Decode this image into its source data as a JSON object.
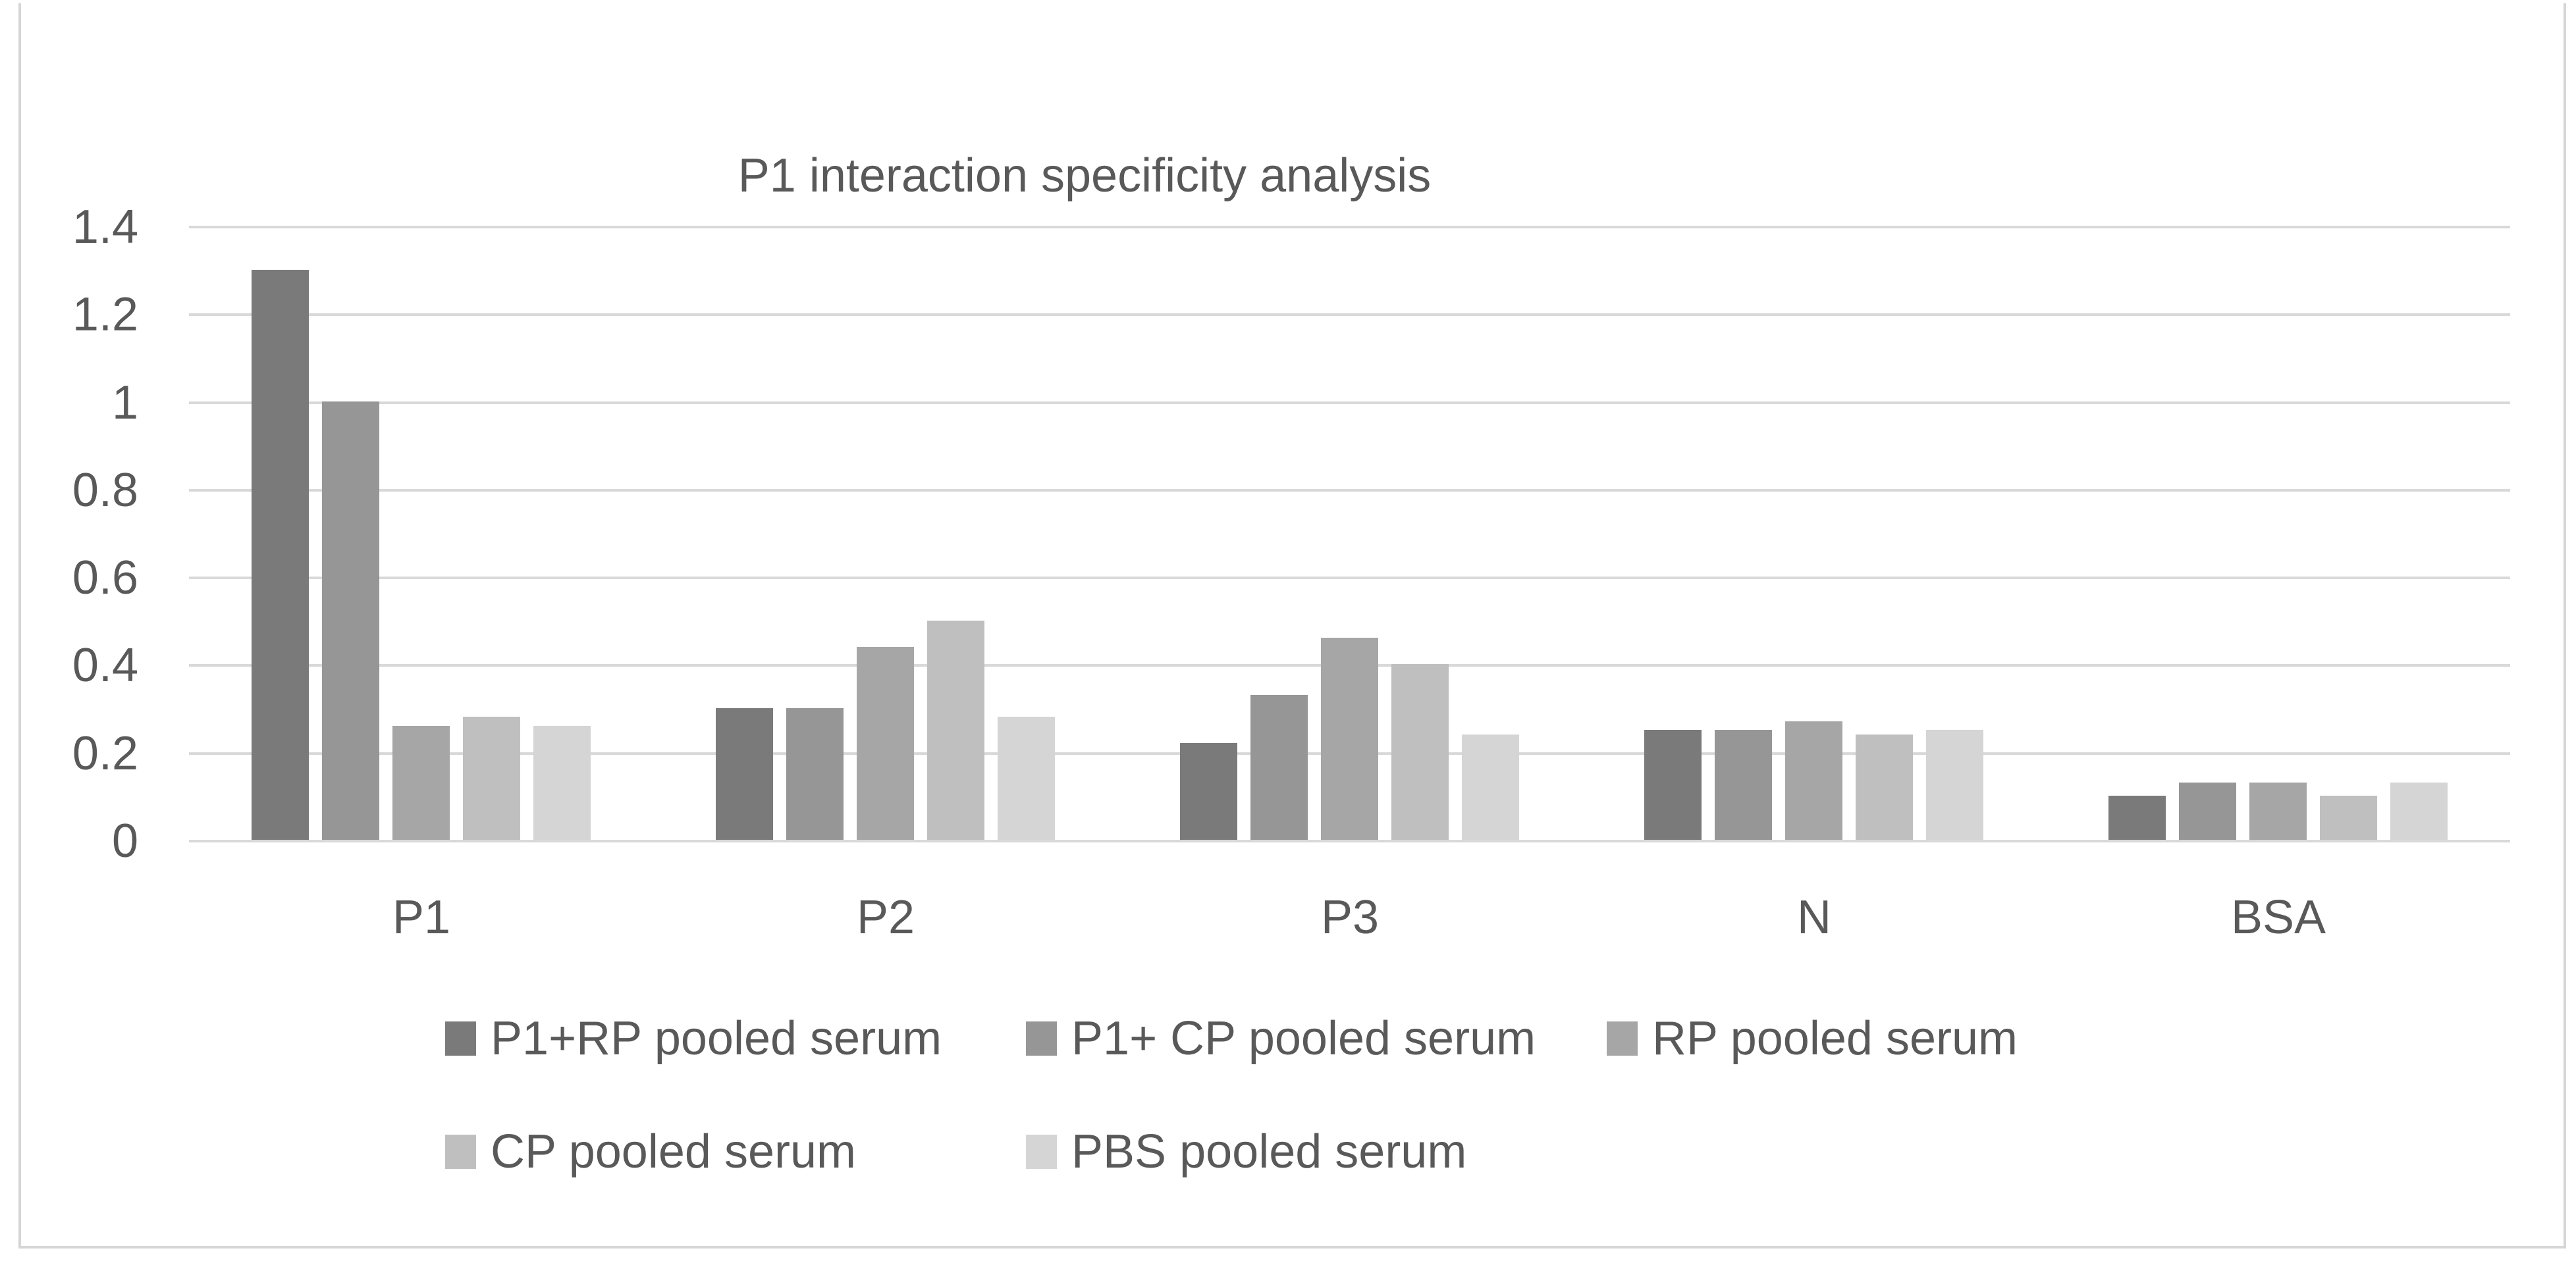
{
  "chart_data": {
    "type": "bar",
    "title": "P1 interaction specificity analysis",
    "categories": [
      "P1",
      "P2",
      "P3",
      "N",
      "BSA"
    ],
    "series": [
      {
        "name": "P1+RP pooled serum",
        "color": "#7a7a7a",
        "values": [
          1.3,
          0.3,
          0.22,
          0.25,
          0.1
        ]
      },
      {
        "name": "P1+ CP pooled serum",
        "color": "#969696",
        "values": [
          1.0,
          0.3,
          0.33,
          0.25,
          0.13
        ]
      },
      {
        "name": "RP pooled serum",
        "color": "#a6a6a6",
        "values": [
          0.26,
          0.44,
          0.46,
          0.27,
          0.13
        ]
      },
      {
        "name": "CP pooled serum",
        "color": "#bfbfbf",
        "values": [
          0.28,
          0.5,
          0.4,
          0.24,
          0.1
        ]
      },
      {
        "name": "PBS pooled serum",
        "color": "#d5d5d5",
        "values": [
          0.26,
          0.28,
          0.24,
          0.25,
          0.13
        ]
      }
    ],
    "ylim": [
      0,
      1.4
    ],
    "yticks": [
      {
        "value": 1.4,
        "label": "1.4"
      },
      {
        "value": 1.2,
        "label": "1.2"
      },
      {
        "value": 1.0,
        "label": "1"
      },
      {
        "value": 0.8,
        "label": "0.8"
      },
      {
        "value": 0.6,
        "label": "0.6"
      },
      {
        "value": 0.4,
        "label": "0.4"
      },
      {
        "value": 0.2,
        "label": "0.2"
      },
      {
        "value": 0.0,
        "label": "0"
      }
    ],
    "grid": true,
    "legend": {
      "position": "bottom",
      "rows": [
        [
          0,
          1,
          2
        ],
        [
          3,
          4
        ]
      ]
    },
    "colors": {
      "text": "#595959",
      "gridline": "#d9d9d9",
      "frame": "#d6d6d6",
      "background": "#ffffff"
    }
  }
}
